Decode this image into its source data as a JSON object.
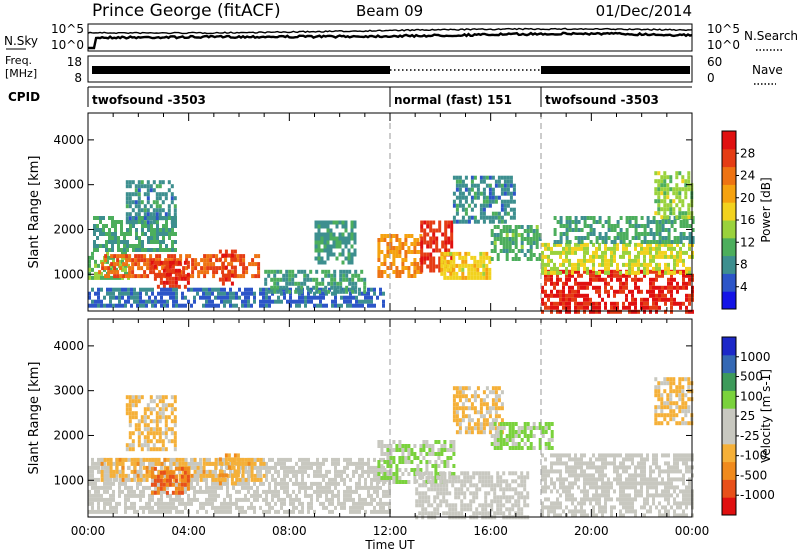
{
  "header": {
    "title": "Prince George (fitACF)",
    "beam": "Beam 09",
    "date": "01/Dec/2014"
  },
  "strips": {
    "nsky_label": "N.Sky",
    "nsky_ticks": [
      "10^5",
      "10^0"
    ],
    "nsearch_label": "N.Search",
    "nsearch_ticks": [
      "10^5",
      "10^0"
    ],
    "freq_label_1": "Freq.",
    "freq_label_2": "[MHz]",
    "freq_ticks": [
      "18",
      "8"
    ],
    "nave_label": "Nave",
    "nave_ticks": [
      "60",
      "0"
    ],
    "cpid_label": "CPID",
    "cpid_segments": [
      {
        "label": "twofsound -3503",
        "start_hour": 0
      },
      {
        "label": "normal (fast) 151",
        "start_hour": 12
      },
      {
        "label": "twofsound -3503",
        "start_hour": 18
      }
    ]
  },
  "x_axis": {
    "label": "Time UT",
    "range_hours": [
      0,
      24
    ],
    "tick_hours": [
      0,
      4,
      8,
      12,
      16,
      20,
      24
    ],
    "tick_labels": [
      "00:00",
      "04:00",
      "08:00",
      "12:00",
      "16:00",
      "20:00",
      "00:00"
    ]
  },
  "chart_data": [
    {
      "type": "heatmap",
      "name": "power",
      "ylabel": "Slant Range [km]",
      "ylim": [
        180,
        4600
      ],
      "y_ticks": [
        1000,
        2000,
        3000,
        4000
      ],
      "colorbar_label": "Power [dB]",
      "colorbar_ticks": [
        "28",
        "24",
        "20",
        "16",
        "12",
        "8",
        "4"
      ],
      "colorbar_range": [
        0,
        32
      ],
      "colors": [
        "#1414e6",
        "#2c55c8",
        "#3d8f8f",
        "#4cae5c",
        "#9ad23c",
        "#f2d21e",
        "#f5a20f",
        "#ee7312",
        "#e53c14",
        "#e01010"
      ],
      "regions": [
        {
          "t": [
            0.0,
            1.6
          ],
          "r": [
            900,
            1500
          ],
          "v": 12
        },
        {
          "t": [
            0.2,
            3.5
          ],
          "r": [
            1500,
            2300
          ],
          "v": 10
        },
        {
          "t": [
            1.5,
            3.5
          ],
          "r": [
            2200,
            3100
          ],
          "v": 8
        },
        {
          "t": [
            0.4,
            6.8
          ],
          "r": [
            1000,
            1450
          ],
          "v": 25
        },
        {
          "t": [
            2.5,
            4.0
          ],
          "r": [
            700,
            1300
          ],
          "v": 28
        },
        {
          "t": [
            5.2,
            5.8
          ],
          "r": [
            750,
            1550
          ],
          "v": 28
        },
        {
          "t": [
            0.0,
            11.8
          ],
          "r": [
            260,
            700
          ],
          "v": 6
        },
        {
          "t": [
            7.0,
            11.0
          ],
          "r": [
            600,
            1100
          ],
          "v": 9
        },
        {
          "t": [
            9.0,
            10.6
          ],
          "r": [
            1300,
            2200
          ],
          "v": 9
        },
        {
          "t": [
            11.5,
            13.2
          ],
          "r": [
            1000,
            1900
          ],
          "v": 22
        },
        {
          "t": [
            13.2,
            14.5
          ],
          "r": [
            1100,
            2200
          ],
          "v": 28
        },
        {
          "t": [
            14.0,
            16.0
          ],
          "r": [
            900,
            1500
          ],
          "v": 18
        },
        {
          "t": [
            14.5,
            17.0
          ],
          "r": [
            2200,
            3200
          ],
          "v": 8
        },
        {
          "t": [
            16.0,
            18.0
          ],
          "r": [
            1300,
            2100
          ],
          "v": 11
        },
        {
          "t": [
            18.0,
            24.0
          ],
          "r": [
            200,
            1100
          ],
          "v": 29
        },
        {
          "t": [
            18.0,
            24.0
          ],
          "r": [
            1000,
            1700
          ],
          "v": 16
        },
        {
          "t": [
            18.5,
            24.0
          ],
          "r": [
            1700,
            2300
          ],
          "v": 10
        },
        {
          "t": [
            22.5,
            24.0
          ],
          "r": [
            2300,
            3300
          ],
          "v": 14
        }
      ]
    },
    {
      "type": "heatmap",
      "name": "velocity",
      "ylabel": "Slant Range [km]",
      "ylim": [
        180,
        4600
      ],
      "y_ticks": [
        1000,
        2000,
        3000,
        4000
      ],
      "colorbar_label": "Velocity [m s-1]",
      "colorbar_ticks": [
        "1000",
        "500",
        "100",
        "25",
        "-25",
        "-100",
        "-500",
        "-1000"
      ],
      "colorbar_range": [
        -1200,
        1200
      ],
      "colors": [
        "#e01010",
        "#e8501a",
        "#f08a1c",
        "#f5b038",
        "#c8c8c0",
        "#c8c8c0",
        "#7ad23c",
        "#3d9a5a",
        "#3468b4",
        "#1c28c8"
      ],
      "regions": [
        {
          "t": [
            0.0,
            12.0
          ],
          "r": [
            250,
            1500
          ],
          "v": 0
        },
        {
          "t": [
            0.5,
            7.0
          ],
          "r": [
            1000,
            1500
          ],
          "v": -350
        },
        {
          "t": [
            2.5,
            4.0
          ],
          "r": [
            700,
            1300
          ],
          "v": -700
        },
        {
          "t": [
            1.5,
            3.5
          ],
          "r": [
            1700,
            2900
          ],
          "v": -300
        },
        {
          "t": [
            5.2,
            6.0
          ],
          "r": [
            900,
            1600
          ],
          "v": -400
        },
        {
          "t": [
            11.5,
            14.5
          ],
          "r": [
            1000,
            1900
          ],
          "v": 250
        },
        {
          "t": [
            13.0,
            17.5
          ],
          "r": [
            200,
            1200
          ],
          "v": 0
        },
        {
          "t": [
            14.5,
            16.5
          ],
          "r": [
            2100,
            3100
          ],
          "v": -250
        },
        {
          "t": [
            16.0,
            18.5
          ],
          "r": [
            1700,
            2300
          ],
          "v": 300
        },
        {
          "t": [
            18.0,
            24.0
          ],
          "r": [
            250,
            1600
          ],
          "v": 0
        },
        {
          "t": [
            22.5,
            24.0
          ],
          "r": [
            2300,
            3300
          ],
          "v": -300
        }
      ]
    }
  ]
}
